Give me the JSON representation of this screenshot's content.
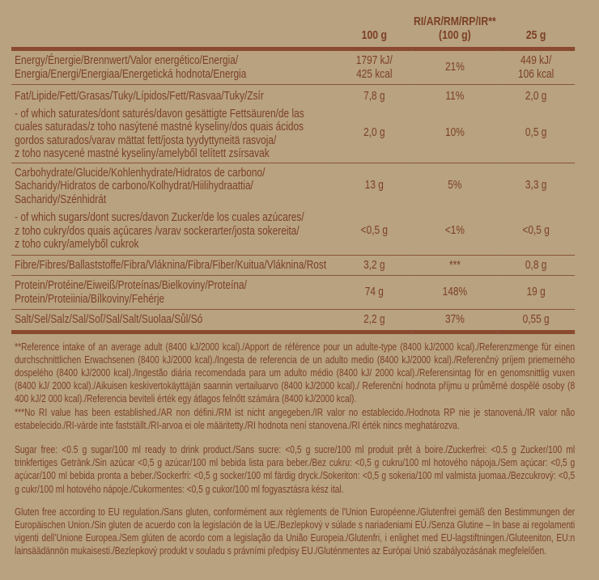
{
  "header": {
    "col_100g": "100 g",
    "col_ri_line1": "RI/AR/RM/RP/IR**",
    "col_ri_line2": "(100 g)",
    "col_25g": "25 g"
  },
  "rows": [
    {
      "label": "Energy/Énergie/Brennwert/Valor energético/Energia/\nEnergia/Energi/Energiaa/Energetická hodnota/Energia",
      "per100": "1797 kJ/\n425 kcal",
      "ri": "21%",
      "per25": "449 kJ/\n106 kcal"
    },
    {
      "label": "Fat/Lipide/Fett/Grasas/Tuky/Lípidos/Fett/Rasvaa/Tuky/Zsír",
      "per100": "7,8 g",
      "ri": "11%",
      "per25": "2,0 g"
    },
    {
      "label": "- of which saturates/dont saturés/davon gesättigte Fettsäuren/de las\ncuales saturadas/z toho nasýtené mastné kyseliny/dos quais ácidos\ngordos saturados/varav mättat fett/josta tyydyttyneitä rasvoja/\nz toho nasycené mastné kyseliny/amelyből telített zsírsavak",
      "per100": "2,0 g",
      "ri": "10%",
      "per25": "0,5 g"
    },
    {
      "label": "Carbohydrate/Glucide/Kohlenhydrate/Hidratos de carbono/\nSacharidy/Hidratos de carbono/Kolhydrat/Hiilihydraattia/\nSacharidy/Szénhidrát",
      "per100": "13 g",
      "ri": "5%",
      "per25": "3,3 g"
    },
    {
      "label": "- of which sugars/dont sucres/davon Zucker/de los cuales azúcares/\nz toho cukry/dos quais açúcares /varav sockerarter/josta sokereita/\nz toho cukry/amelyből cukrok",
      "per100": "<0,5 g",
      "ri": "<1%",
      "per25": "<0,5 g"
    },
    {
      "label": "Fibre/Fibres/Ballaststoffe/Fibra/Vláknina/Fibra/Fiber/Kuitua/Vláknina/Rost",
      "per100": "3,2 g",
      "ri": "***",
      "per25": "0,8 g"
    },
    {
      "label": "Protein/Protéine/Eiweiß/Proteínas/Bielkoviny/Proteína/\nProtein/Proteiinia/Bílkoviny/Fehérje",
      "per100": "74 g",
      "ri": "148%",
      "per25": "19 g"
    },
    {
      "label": "Salt/Sel/Salz/Sal/Soľ/Sal/Salt/Suolaa/Sůl/Só",
      "per100": "2,2 g",
      "ri": "37%",
      "per25": "0,55 g"
    }
  ],
  "notes": {
    "ri_note": "**Reference intake of an average adult (8400 kJ/2000 kcal)./Apport de référence pour un adulte-type (8400 kJ/2000 kcal)./Referenzmenge für einen durchschnittlichen Erwachsenen (8400 kJ/2000 kcal)./Ingesta de referencia de un adulto medio (8400 kJ/2000 kcal)./Referenčný príjem priemerného dospelého (8400 kJ/2000 kcal)./Ingestão diária recomendada para um adulto médio (8400 kJ/ 2000 kcal)./Referensintag för en genomsnittlig vuxen (8400 kJ/ 2000 kcal)./Aikuisen keskivertokäyttäjän saannin vertailuarvo (8400 kJ/2000 kcal)./ Referenční hodnota příjmu u průměrné dospělé osoby (8 400 kJ/2 000 kcal)./Referencia beviteli érték egy átlagos felnőtt számára (8400 kJ/2000 kcal).",
    "no_ri_note": "***No RI value has been established./AR non défini./RM ist nicht angegeben./IR valor no establecido./Hodnota RP nie je stanovená./IR valor não estabelecido./RI-värde inte fastställt./RI-arvoa ei ole määritetty./RI hodnota není stanovena./RI érték nincs meghatározva.",
    "sugar_free": "Sugar free: <0.5 g sugar/100 ml ready to drink product./Sans sucre: <0,5 g sucre/100 ml produit prêt à boire./Zuckerfrei: <0.5 g Zucker/100 ml trinkfertiges Getränk./Sin azúcar <0,5 g azúcar/100 ml bebida lista para beber./Bez cukru: <0,5 g cukru/100 ml hotového nápoja./Sem açúcar: <0,5 g açúcar/100 ml bebida pronta a beber./Sockerfri: <0,5 g socker/100 ml färdig dryck./Sokeriton: <0,5 g sokeria/100 ml valmista juomaa./Bezcukrový: <0,5 g cukr/100 ml hotového nápoje./Cukormentes: <0,5 g cukor/100 ml fogyasztásra kész ital.",
    "gluten_free": "Gluten free according to EU regulation./Sans gluten, conformément aux règlements de l'Union Européenne./Glutenfrei gemäß den Bestimmungen der Europäischen Union./Sin gluten de acuerdo con la legislación de la UE./Bezlepkový v súlade s nariadeniami EÚ./Senza Glutine – In base ai regolamenti vigenti dell’Unione Europea./Sem glúten de acordo com a legislação da União Europeia./Glutenfri, i enlighet med EU-lagstiftningen./Gluteeniton, EU:n lainsäädännön mukaisesti./Bezlepkový produkt v souladu s právními předpisy EU./Gluténmentes az Európai Unió szabályozásának megfelelően."
  },
  "colors": {
    "background": "#b8a27f",
    "text": "#7b3f27",
    "rule": "#8a4a30"
  }
}
